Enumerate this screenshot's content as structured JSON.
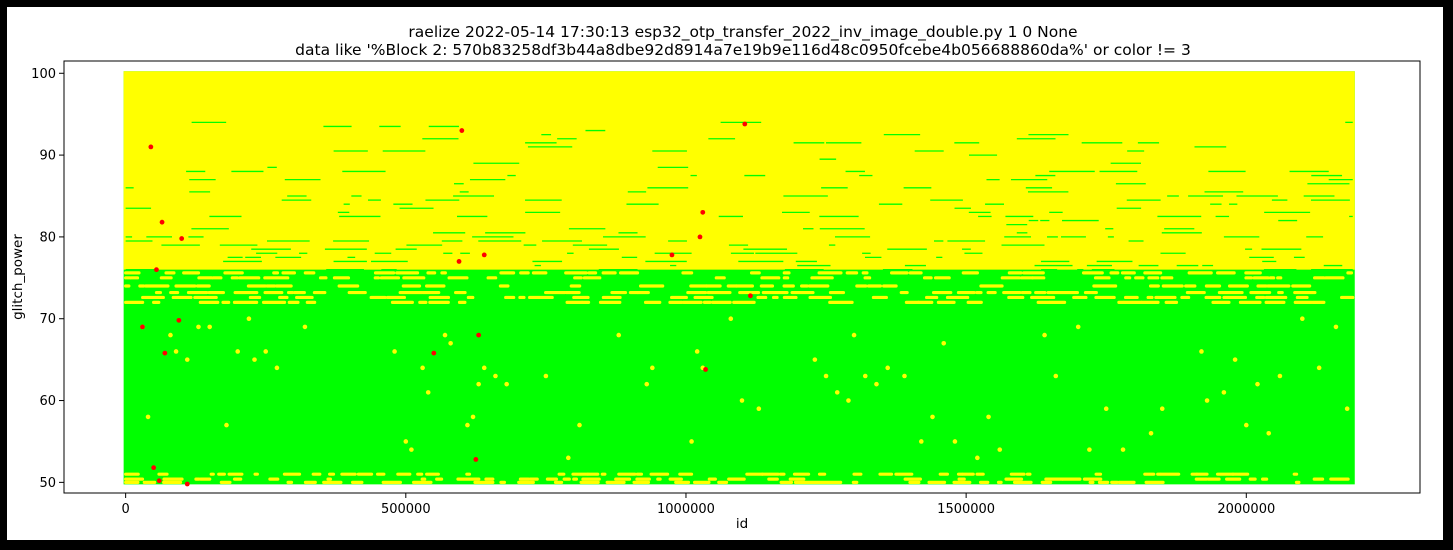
{
  "chart_data": {
    "type": "scatter",
    "title": "raelize 2022-05-14 17:30:13 esp32_otp_transfer_2022_inv_image_double.py 1 0 None",
    "subtitle": "data like '%Block 2: 570b83258df3b44a8dbe92d8914a7e19b9e116d48c0950fcebe4b056688860da%' or color != 3",
    "xlabel": "id",
    "ylabel": "glitch_power",
    "xlim": [
      -110000,
      2310000
    ],
    "ylim": [
      48.7,
      101.5
    ],
    "x_ticks": [
      0,
      500000,
      1000000,
      1500000,
      2000000
    ],
    "x_tick_labels": [
      "0",
      "500000",
      "1000000",
      "1500000",
      "2000000"
    ],
    "y_ticks": [
      50,
      60,
      70,
      80,
      90,
      100
    ],
    "y_tick_labels": [
      "50",
      "60",
      "70",
      "80",
      "90",
      "100"
    ],
    "grid": false,
    "legend": "none",
    "data_extent": {
      "x": [
        0,
        2190000
      ],
      "y": [
        50,
        100
      ]
    },
    "series": [
      {
        "color": "#00ff00",
        "description_regions": [
          {
            "x": [
              0,
              2190000
            ],
            "y": [
              50,
              72.5
            ]
          },
          {
            "x": [
              0,
              2190000
            ],
            "y": [
              72.5,
              95
            ]
          }
        ]
      },
      {
        "color": "#ffff00",
        "regions": [
          {
            "x": [
              0,
              2190000
            ],
            "y": [
              76,
              100
            ]
          }
        ],
        "points": [
          [
            30000,
            69
          ],
          [
            40000,
            58
          ],
          [
            80000,
            68
          ],
          [
            90000,
            66
          ],
          [
            110000,
            65
          ],
          [
            130000,
            69
          ],
          [
            150000,
            69
          ],
          [
            180000,
            57
          ],
          [
            200000,
            66
          ],
          [
            220000,
            70
          ],
          [
            230000,
            65
          ],
          [
            250000,
            66
          ],
          [
            270000,
            64
          ],
          [
            320000,
            69
          ],
          [
            480000,
            66
          ],
          [
            500000,
            55
          ],
          [
            510000,
            54
          ],
          [
            530000,
            64
          ],
          [
            540000,
            61
          ],
          [
            570000,
            68
          ],
          [
            580000,
            67
          ],
          [
            610000,
            57
          ],
          [
            620000,
            58
          ],
          [
            630000,
            62
          ],
          [
            640000,
            64
          ],
          [
            660000,
            63
          ],
          [
            680000,
            62
          ],
          [
            750000,
            63
          ],
          [
            790000,
            53
          ],
          [
            810000,
            57
          ],
          [
            880000,
            68
          ],
          [
            930000,
            62
          ],
          [
            940000,
            64
          ],
          [
            1010000,
            55
          ],
          [
            1020000,
            66
          ],
          [
            1030000,
            64
          ],
          [
            1080000,
            70
          ],
          [
            1100000,
            60
          ],
          [
            1130000,
            59
          ],
          [
            1230000,
            65
          ],
          [
            1250000,
            63
          ],
          [
            1270000,
            61
          ],
          [
            1290000,
            60
          ],
          [
            1300000,
            68
          ],
          [
            1320000,
            63
          ],
          [
            1340000,
            62
          ],
          [
            1360000,
            64
          ],
          [
            1390000,
            63
          ],
          [
            1420000,
            55
          ],
          [
            1440000,
            58
          ],
          [
            1460000,
            67
          ],
          [
            1480000,
            55
          ],
          [
            1520000,
            53
          ],
          [
            1540000,
            58
          ],
          [
            1560000,
            54
          ],
          [
            1640000,
            68
          ],
          [
            1660000,
            63
          ],
          [
            1700000,
            69
          ],
          [
            1720000,
            54
          ],
          [
            1750000,
            59
          ],
          [
            1780000,
            54
          ],
          [
            1830000,
            56
          ],
          [
            1850000,
            59
          ],
          [
            1920000,
            66
          ],
          [
            1930000,
            60
          ],
          [
            1960000,
            61
          ],
          [
            1980000,
            65
          ],
          [
            2000000,
            57
          ],
          [
            2020000,
            62
          ],
          [
            2040000,
            56
          ],
          [
            2060000,
            63
          ],
          [
            2100000,
            70
          ],
          [
            2130000,
            64
          ],
          [
            2160000,
            69
          ],
          [
            2180000,
            59
          ]
        ]
      },
      {
        "color": "#ff0000",
        "points": [
          [
            45000,
            91
          ],
          [
            65000,
            81.8
          ],
          [
            100000,
            79.8
          ],
          [
            55000,
            76
          ],
          [
            30000,
            69
          ],
          [
            95000,
            69.8
          ],
          [
            70000,
            65.8
          ],
          [
            50000,
            51.8
          ],
          [
            60000,
            50.2
          ],
          [
            110000,
            49.8
          ],
          [
            600000,
            93
          ],
          [
            595000,
            77
          ],
          [
            640000,
            77.8
          ],
          [
            630000,
            68
          ],
          [
            550000,
            65.8
          ],
          [
            625000,
            52.8
          ],
          [
            975000,
            77.8
          ],
          [
            1030000,
            83
          ],
          [
            1025000,
            80
          ],
          [
            1035000,
            63.8
          ],
          [
            1105000,
            93.8
          ],
          [
            1115000,
            72.8
          ]
        ]
      }
    ]
  }
}
